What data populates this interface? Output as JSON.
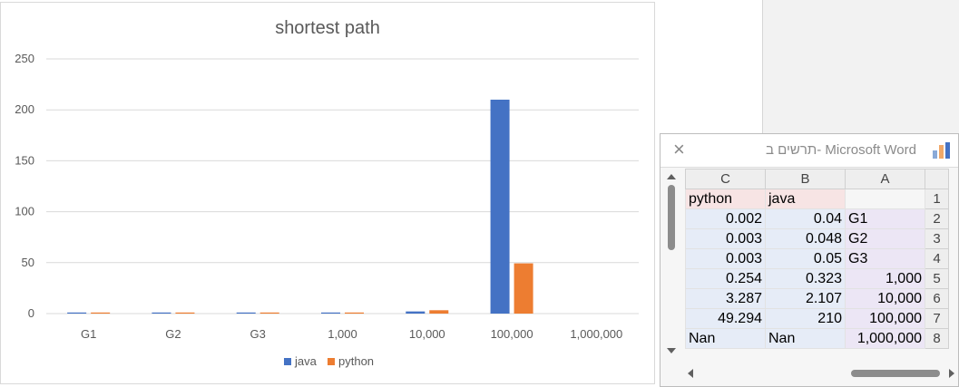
{
  "chart_data": {
    "type": "bar",
    "title": "shortest path",
    "categories": [
      "G1",
      "G2",
      "G3",
      "1,000",
      "10,000",
      "100,000",
      "1,000,000"
    ],
    "series": [
      {
        "name": "java",
        "values": [
          0.04,
          0.048,
          0.05,
          0.323,
          2.107,
          210,
          null
        ],
        "color": "#4472c4"
      },
      {
        "name": "python",
        "values": [
          0.002,
          0.003,
          0.003,
          0.254,
          3.287,
          49.294,
          null
        ],
        "color": "#ed7d31"
      }
    ],
    "yticks": [
      "0",
      "50",
      "100",
      "150",
      "200",
      "250"
    ],
    "ylim": [
      0,
      250
    ],
    "grid": true,
    "legend": "bottom"
  },
  "sheet": {
    "title": "תרשים ב- Microsoft Word",
    "close_glyph": "×",
    "col_headers": [
      "C",
      "B",
      "A"
    ],
    "rows": [
      {
        "num": "1",
        "c": "python",
        "b": "java",
        "a": ""
      },
      {
        "num": "2",
        "c": "0.002",
        "b": "0.04",
        "a": "G1"
      },
      {
        "num": "3",
        "c": "0.003",
        "b": "0.048",
        "a": "G2"
      },
      {
        "num": "4",
        "c": "0.003",
        "b": "0.05",
        "a": "G3"
      },
      {
        "num": "5",
        "c": "0.254",
        "b": "0.323",
        "a": "1,000"
      },
      {
        "num": "6",
        "c": "3.287",
        "b": "2.107",
        "a": "10,000"
      },
      {
        "num": "7",
        "c": "49.294",
        "b": "210",
        "a": "100,000"
      },
      {
        "num": "8",
        "c": "Nan",
        "b": "Nan",
        "a": "1,000,000"
      }
    ]
  }
}
